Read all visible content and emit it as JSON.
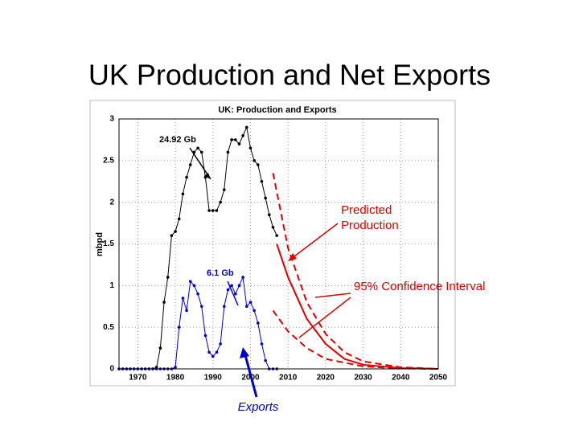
{
  "slide_title": "UK Production and Net Exports",
  "chart_data": {
    "type": "line",
    "title": "UK: Production and Exports",
    "ylabel": "mbpd",
    "xlim": [
      1965,
      2050
    ],
    "xticks": [
      1970,
      1980,
      1990,
      2000,
      2010,
      2020,
      2030,
      2040,
      2050
    ],
    "ylim": [
      0,
      3
    ],
    "yticks": [
      0,
      0.5,
      1,
      1.5,
      2,
      2.5,
      3
    ],
    "grid": true,
    "series": [
      {
        "color": "#000000",
        "style": "markers",
        "x": [
          1965,
          1966,
          1967,
          1968,
          1969,
          1970,
          1971,
          1972,
          1973,
          1974,
          1975,
          1976,
          1977,
          1978,
          1979,
          1980,
          1981,
          1982,
          1983,
          1984,
          1985,
          1986,
          1987,
          1988,
          1989,
          1990,
          1991,
          1992,
          1993,
          1994,
          1995,
          1996,
          1997,
          1998,
          1999,
          2000,
          2001,
          2002,
          2003,
          2004,
          2005,
          2006,
          2007
        ],
        "values": [
          0,
          0,
          0,
          0,
          0,
          0,
          0,
          0,
          0,
          0,
          0.02,
          0.25,
          0.8,
          1.1,
          1.6,
          1.65,
          1.8,
          2.1,
          2.3,
          2.45,
          2.6,
          2.65,
          2.6,
          2.3,
          1.9,
          1.9,
          1.9,
          2.0,
          2.15,
          2.6,
          2.75,
          2.75,
          2.7,
          2.8,
          2.9,
          2.65,
          2.5,
          2.45,
          2.25,
          2.05,
          1.85,
          1.7,
          1.6
        ]
      },
      {
        "color": "#0000cc",
        "style": "markers",
        "x": [
          1965,
          1966,
          1967,
          1968,
          1969,
          1970,
          1971,
          1972,
          1973,
          1974,
          1975,
          1976,
          1977,
          1978,
          1979,
          1980,
          1981,
          1982,
          1983,
          1984,
          1985,
          1986,
          1987,
          1988,
          1989,
          1990,
          1991,
          1992,
          1993,
          1994,
          1995,
          1996,
          1997,
          1998,
          1999,
          2000,
          2001,
          2002,
          2003,
          2004,
          2005,
          2006,
          2007
        ],
        "values": [
          0,
          0,
          0,
          0,
          0,
          0,
          0,
          0,
          0,
          0,
          0,
          0,
          0,
          0,
          0,
          0.02,
          0.5,
          0.85,
          0.7,
          1.05,
          1.0,
          0.9,
          0.75,
          0.4,
          0.2,
          0.15,
          0.2,
          0.3,
          0.75,
          0.95,
          1.0,
          0.9,
          1.0,
          1.1,
          0.75,
          0.8,
          0.7,
          0.55,
          0.3,
          0.1,
          0,
          0,
          0
        ]
      },
      {
        "color": "#e00000",
        "style": "solid",
        "x": [
          2007,
          2010,
          2015,
          2020,
          2025,
          2030,
          2040,
          2050
        ],
        "values": [
          1.5,
          1.1,
          0.6,
          0.3,
          0.12,
          0.05,
          0.01,
          0
        ]
      },
      {
        "color": "#e00000",
        "style": "dashed",
        "x": [
          2006,
          2010,
          2015,
          2020,
          2025,
          2030,
          2040,
          2050
        ],
        "values": [
          2.35,
          1.45,
          0.8,
          0.42,
          0.2,
          0.09,
          0.02,
          0
        ]
      },
      {
        "color": "#e00000",
        "style": "dashed",
        "x": [
          2006,
          2010,
          2015,
          2020,
          2030,
          2040,
          2050
        ],
        "values": [
          0.7,
          0.45,
          0.25,
          0.12,
          0.03,
          0.005,
          0
        ]
      }
    ],
    "annotations": [
      "24.92 Gb",
      "6.1 Gb",
      [
        "Predicted",
        "Production"
      ],
      "95% Confidence Interval",
      "Exports"
    ]
  }
}
